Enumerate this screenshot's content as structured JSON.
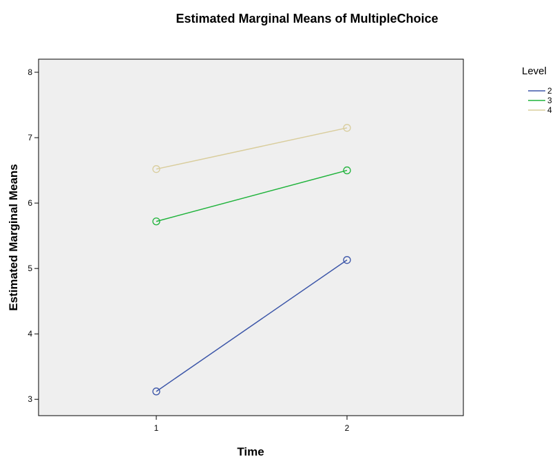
{
  "chart_data": {
    "type": "line",
    "title": "Estimated Marginal Means of MultipleChoice",
    "xlabel": "Time",
    "ylabel": "Estimated Marginal Means",
    "x": [
      "1",
      "2"
    ],
    "yticks": [
      "3",
      "4",
      "5",
      "6",
      "7",
      "8"
    ],
    "ylim": [
      2.75,
      8.2
    ],
    "grid": false,
    "legend": {
      "title": "Level",
      "placement": "right"
    },
    "series": [
      {
        "name": "2",
        "color": "#3b55a8",
        "values": [
          3.12,
          5.13
        ]
      },
      {
        "name": "3",
        "color": "#1fb33b",
        "values": [
          5.72,
          6.5
        ]
      },
      {
        "name": "4",
        "color": "#d9cd9c",
        "values": [
          6.52,
          7.15
        ]
      }
    ],
    "plot_background": "#efefef"
  }
}
